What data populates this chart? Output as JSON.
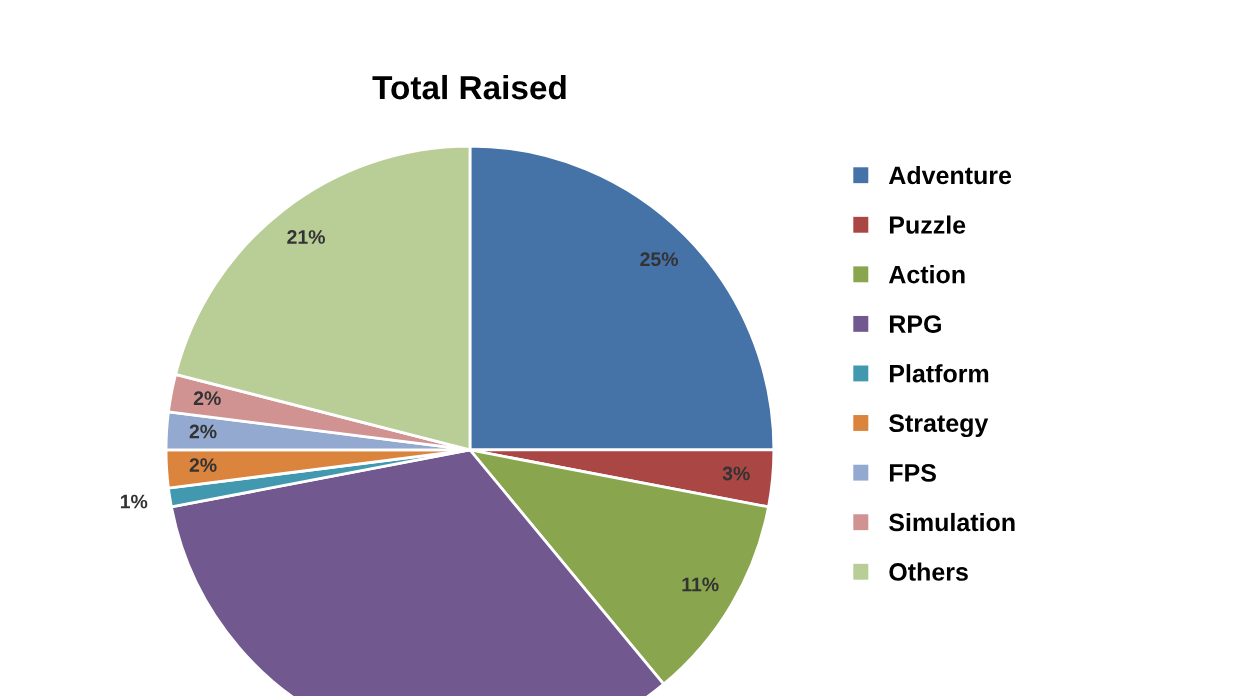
{
  "chart_data": {
    "type": "pie",
    "title": "Total Raised",
    "categories": [
      "Adventure",
      "Puzzle",
      "Action",
      "RPG",
      "Platform",
      "Strategy",
      "FPS",
      "Simulation",
      "Others"
    ],
    "values": [
      25,
      3,
      11,
      33,
      1,
      2,
      2,
      2,
      21
    ],
    "colors": [
      "#4572a7",
      "#aa4643",
      "#89a54e",
      "#71588f",
      "#4198af",
      "#db843d",
      "#93a9cf",
      "#d19392",
      "#b9cd96"
    ],
    "value_labels": [
      "25%",
      "3%",
      "11%",
      null,
      "1%",
      "2%",
      "2%",
      "2%",
      "21%"
    ],
    "legend": "right"
  }
}
